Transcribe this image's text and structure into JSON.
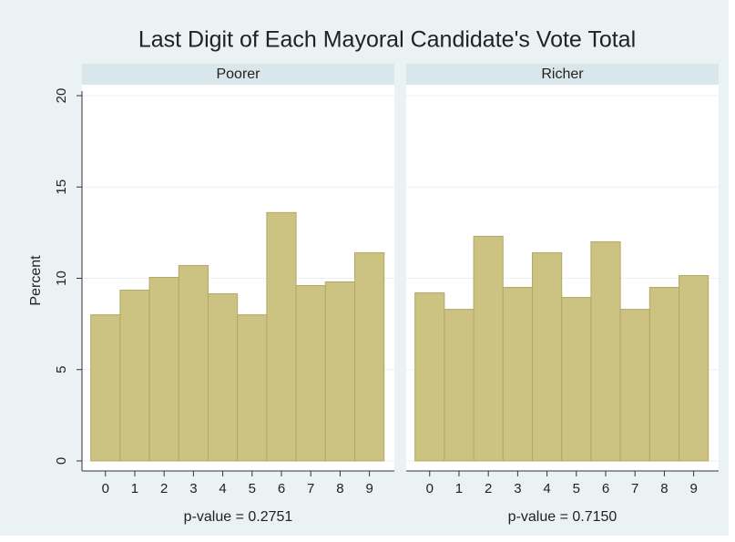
{
  "chart_data": {
    "type": "histogram",
    "title": "Last Digit of Each Mayoral Candidate's Vote Total",
    "ylabel": "Percent",
    "color": "#ccc281",
    "ylim": [
      -0.55,
      20.6
    ],
    "yticks": [
      0,
      5,
      10,
      15,
      20
    ],
    "xlim": [
      -0.8,
      9.85
    ],
    "xticks": [
      0,
      1,
      2,
      3,
      4,
      5,
      6,
      7,
      8,
      9
    ],
    "bins": [
      -0.5,
      0.5,
      1.5,
      2.5,
      3.5,
      4.5,
      5.5,
      6.5,
      7.5,
      8.5,
      9.5
    ],
    "grid": true,
    "panels": [
      {
        "name": "Poorer",
        "xlabel": "p-value = 0.2751",
        "values": [
          8.0,
          9.35,
          10.05,
          10.7,
          9.15,
          8.0,
          13.6,
          9.6,
          9.8,
          11.4
        ]
      },
      {
        "name": "Richer",
        "xlabel": "p-value = 0.7150",
        "values": [
          9.2,
          8.3,
          12.3,
          9.5,
          11.4,
          8.95,
          12.0,
          8.3,
          9.5,
          10.15
        ]
      }
    ]
  }
}
